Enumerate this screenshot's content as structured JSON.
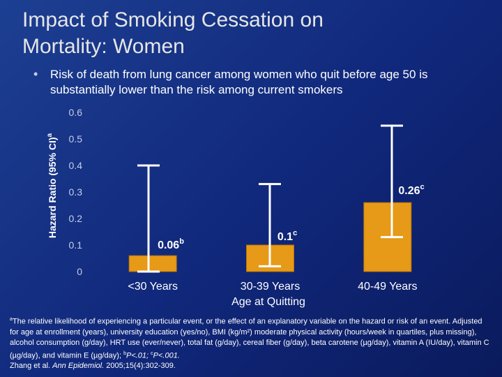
{
  "slide": {
    "title_line1": "Impact of Smoking Cessation on",
    "title_line2": "Mortality: Women",
    "bullet": "Risk of death from lung cancer among women who quit before age 50 is substantially lower than the risk among current smokers",
    "footnote_marker": "a",
    "footnote_main": "The relative likelihood of experiencing a particular event, or the effect of an explanatory variable on the hazard or risk of an event. Adjusted for age at enrollment (years), university education (yes/no), BMI (kg/m²) moderate physical activity (hours/week in quartiles, plus missing), alcohol consumption (g/day), HRT use (ever/never), total fat (g/day), cereal fiber (g/day), beta carotene (µg/day), vitamin A (IU/day), vitamin C (µg/day), and vitamin E (µg/day); ",
    "footnote_b_marker": "b",
    "footnote_b_text": "P<.01; ",
    "footnote_c_marker": "c",
    "footnote_c_text": "P<.001.",
    "citation_prefix": "Zhang et al. ",
    "citation_journal": "Ann Epidemiol.",
    "citation_rest": " 2005;15(4):302-309."
  },
  "colors": {
    "bar": "#e79a17",
    "error_bar": "#ffffff",
    "axis_text": "#c9cde6"
  },
  "chart_data": {
    "type": "bar",
    "title": "",
    "xlabel": "Age at Quitting",
    "ylabel": "Hazard Ratio (95% CI)",
    "ylabel_superscript": "a",
    "ylim": [
      0,
      0.6
    ],
    "yticks": [
      "0",
      "0.1",
      "0.2",
      "0.3",
      "0.4",
      "0.5",
      "0.6"
    ],
    "categories": [
      "<30 Years",
      "30-39 Years",
      "40-49 Years"
    ],
    "values": [
      0.06,
      0.1,
      0.26
    ],
    "ci_low": [
      0.0,
      0.02,
      0.13
    ],
    "ci_high": [
      0.4,
      0.33,
      0.55
    ],
    "data_labels": [
      "0.06",
      "0.1",
      "0.26"
    ],
    "data_label_superscripts": [
      "b",
      "c",
      "c"
    ],
    "grid": false
  }
}
